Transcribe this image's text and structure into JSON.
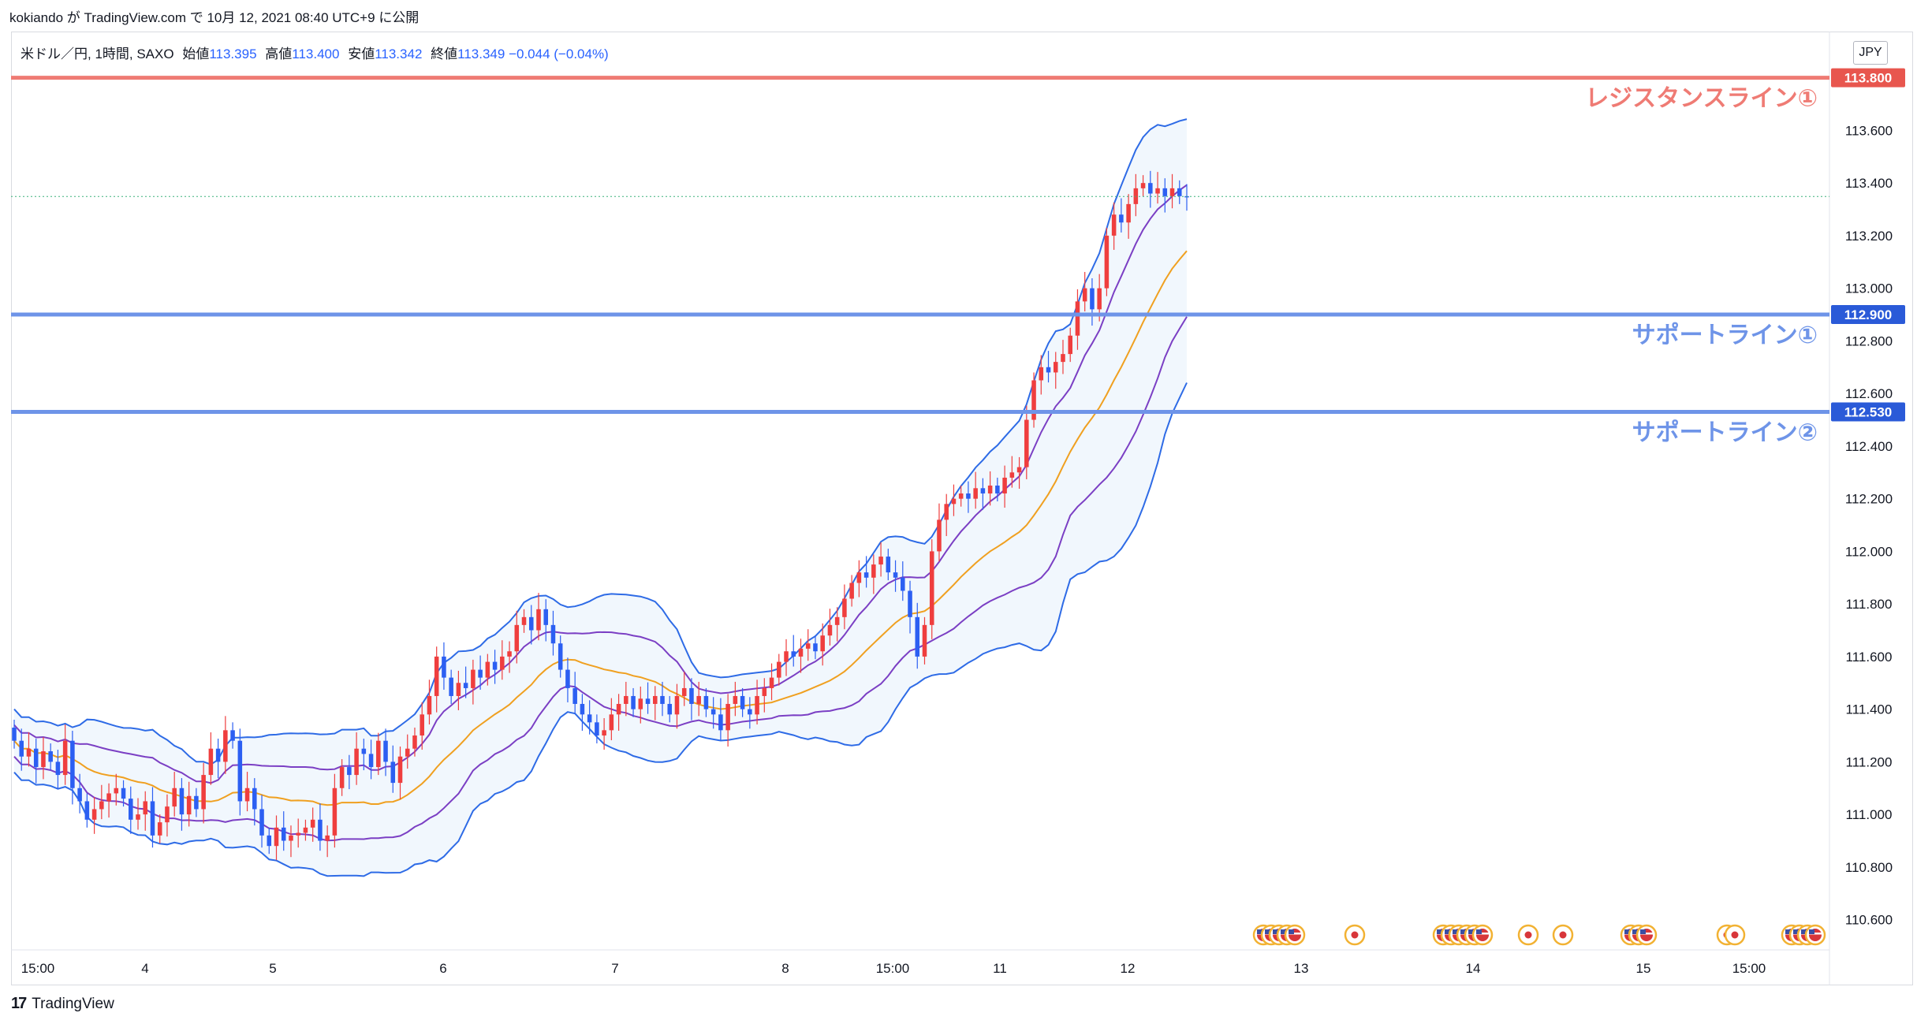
{
  "header": {
    "user": "kokiando",
    "ga": "が",
    "site": "TradingView.com",
    "de": "で",
    "datetime": "10月 12, 2021 08:40 UTC+9",
    "published": "に公開"
  },
  "legend": {
    "symbol": "米ドル／円, 1時間, SAXO",
    "open_label": "始値",
    "open": "113.395",
    "high_label": "高値",
    "high": "113.400",
    "low_label": "安値",
    "low": "113.342",
    "close_label": "終値",
    "close": "113.349",
    "change": "−0.044 (−0.04%)"
  },
  "currency": "JPY",
  "footer": {
    "brand": "TradingView"
  },
  "chart_data": {
    "type": "candlestick",
    "symbol": "USD/JPY",
    "timeframe": "1H",
    "ylim": [
      110.5,
      113.85
    ],
    "y_ticks": [
      "113.600",
      "113.400",
      "113.200",
      "113.000",
      "112.800",
      "112.600",
      "112.400",
      "112.200",
      "112.000",
      "111.800",
      "111.600",
      "111.400",
      "111.200",
      "111.000",
      "110.800",
      "110.600"
    ],
    "x_ticks": [
      "15:00",
      "4",
      "5",
      "6",
      "7",
      "8",
      "15:00",
      "11",
      "12",
      "13",
      "14",
      "15",
      "15:00"
    ],
    "horizontal_lines": [
      {
        "label": "レジスタンスライン①",
        "price": "113.800",
        "value": 113.8,
        "color": "#ef7b74"
      },
      {
        "label": "サポートライン①",
        "price": "112.900",
        "value": 112.9,
        "color": "#6e94e8"
      },
      {
        "label": "サポートライン②",
        "price": "112.530",
        "value": 112.53,
        "color": "#6e94e8"
      }
    ],
    "last_price": 113.349,
    "candles_close": [
      111.28,
      111.22,
      111.25,
      111.18,
      111.24,
      111.2,
      111.15,
      111.28,
      111.1,
      111.05,
      110.98,
      111.02,
      111.05,
      111.08,
      111.1,
      111.06,
      110.98,
      111.0,
      111.05,
      110.92,
      110.97,
      111.03,
      111.1,
      111.0,
      111.07,
      111.02,
      111.15,
      111.25,
      111.2,
      111.32,
      111.28,
      111.05,
      111.1,
      111.02,
      110.92,
      110.88,
      110.95,
      110.9,
      110.92,
      110.93,
      110.95,
      110.98,
      110.9,
      110.92,
      111.1,
      111.18,
      111.15,
      111.25,
      111.23,
      111.18,
      111.28,
      111.2,
      111.12,
      111.22,
      111.25,
      111.3,
      111.38,
      111.45,
      111.6,
      111.52,
      111.45,
      111.5,
      111.48,
      111.55,
      111.52,
      111.58,
      111.55,
      111.6,
      111.62,
      111.72,
      111.75,
      111.7,
      111.78,
      111.72,
      111.65,
      111.55,
      111.48,
      111.42,
      111.38,
      111.35,
      111.3,
      111.32,
      111.38,
      111.42,
      111.45,
      111.4,
      111.44,
      111.42,
      111.45,
      111.42,
      111.38,
      111.45,
      111.48,
      111.42,
      111.45,
      111.4,
      111.38,
      111.32,
      111.42,
      111.45,
      111.4,
      111.38,
      111.45,
      111.48,
      111.52,
      111.58,
      111.62,
      111.6,
      111.63,
      111.65,
      111.62,
      111.68,
      111.72,
      111.75,
      111.82,
      111.88,
      111.92,
      111.9,
      111.95,
      111.98,
      111.92,
      111.9,
      111.85,
      111.75,
      111.6,
      111.72,
      112.0,
      112.12,
      112.18,
      112.2,
      112.22,
      112.2,
      112.24,
      112.22,
      112.25,
      112.22,
      112.28,
      112.3,
      112.32,
      112.5,
      112.65,
      112.7,
      112.68,
      112.72,
      112.75,
      112.82,
      112.95,
      113.0,
      112.92,
      113.0,
      113.2,
      113.28,
      113.25,
      113.32,
      113.38,
      113.4,
      113.36,
      113.38,
      113.35,
      113.38,
      113.35,
      113.349
    ],
    "bollinger_bands": [
      "upper_2sigma",
      "upper_1sigma",
      "middle",
      "lower_1sigma",
      "lower_2sigma"
    ],
    "event_markers": [
      {
        "x_pos": "13 前",
        "flags": [
          "us",
          "us",
          "us",
          "us",
          "us"
        ]
      },
      {
        "x_pos": "13",
        "flags": [
          "jp"
        ]
      },
      {
        "x_pos": "14 前",
        "flags": [
          "us",
          "us",
          "us",
          "us",
          "us",
          "us"
        ]
      },
      {
        "x_pos": "14",
        "flags": [
          "jp"
        ]
      },
      {
        "x_pos": "14 後",
        "flags": [
          "jp"
        ]
      },
      {
        "x_pos": "15 前",
        "flags": [
          "us",
          "us",
          "us"
        ]
      },
      {
        "x_pos": "15:00 前",
        "flags": [
          "jp",
          "jp"
        ]
      },
      {
        "x_pos": "15:00 後",
        "flags": [
          "us",
          "us",
          "us",
          "us"
        ]
      }
    ]
  }
}
